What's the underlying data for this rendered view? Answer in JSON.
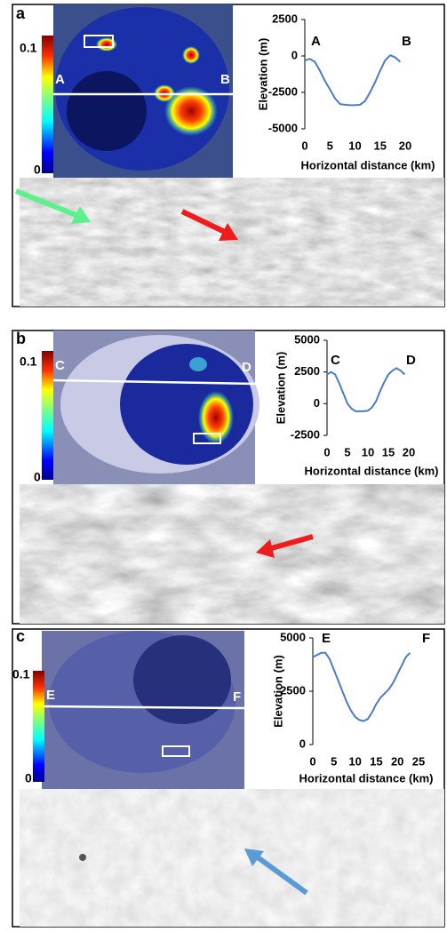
{
  "panels": [
    {
      "label": "a",
      "colorbar": {
        "max": 0.1,
        "min": 0
      },
      "map_labels": [
        "A",
        "B"
      ]
    },
    {
      "label": "b",
      "colorbar": {
        "max": 0.1,
        "min": 0
      },
      "map_labels": [
        "C",
        "D"
      ]
    },
    {
      "label": "c",
      "colorbar": {
        "max": 0.1,
        "min": 0
      },
      "map_labels": [
        "E",
        "F"
      ]
    }
  ],
  "chart_data": [
    {
      "type": "line",
      "x_label": "Horizontal distance (km)",
      "y_label": "Elevation (m)",
      "annotations": [
        "A",
        "B"
      ],
      "x": [
        0,
        1,
        2,
        3,
        4,
        5,
        6,
        7,
        8,
        9,
        10,
        11,
        12,
        13,
        14,
        15,
        16,
        17,
        18,
        19
      ],
      "values": [
        -300,
        -200,
        -400,
        -1000,
        -1700,
        -2300,
        -2900,
        -3300,
        -3350,
        -3380,
        -3380,
        -3350,
        -3100,
        -2500,
        -1800,
        -1000,
        -300,
        50,
        -100,
        -400
      ],
      "color": "#4a7cc9",
      "xlim": [
        0,
        20
      ],
      "xticks": [
        0,
        5,
        10,
        15,
        20
      ],
      "ylim": [
        -5000,
        2500
      ],
      "yticks": [
        -5000,
        -2500,
        0,
        2500
      ]
    },
    {
      "type": "line",
      "x_label": "Horizontal distance (km)",
      "y_label": "Elevation (m)",
      "annotations": [
        "C",
        "D"
      ],
      "x": [
        0,
        1,
        2,
        3,
        4,
        5,
        6,
        7,
        8,
        9,
        10,
        11,
        12,
        13,
        14,
        15,
        16,
        17,
        18,
        19
      ],
      "values": [
        2300,
        2500,
        2300,
        1600,
        800,
        0,
        -400,
        -600,
        -600,
        -600,
        -550,
        -300,
        200,
        1000,
        1700,
        2300,
        2600,
        2800,
        2600,
        2300
      ],
      "color": "#4a7cc9",
      "xlim": [
        0,
        20
      ],
      "xticks": [
        0,
        5,
        10,
        15,
        20
      ],
      "ylim": [
        -2500,
        5000
      ],
      "yticks": [
        -2500,
        0,
        2500,
        5000
      ]
    },
    {
      "type": "line",
      "x_label": "Horizontal distance (km)",
      "y_label": "Elevation (m)",
      "annotations": [
        "E",
        "F"
      ],
      "x": [
        0,
        1,
        2,
        3,
        4,
        5,
        6,
        7,
        8,
        9,
        10,
        11,
        12,
        13,
        14,
        15,
        16,
        17,
        18,
        19,
        20,
        21,
        22,
        23
      ],
      "values": [
        4100,
        4200,
        4300,
        4300,
        4000,
        3500,
        3000,
        2500,
        2000,
        1600,
        1300,
        1150,
        1100,
        1200,
        1500,
        1900,
        2200,
        2400,
        2600,
        2900,
        3300,
        3700,
        4100,
        4300
      ],
      "color": "#4a7cc9",
      "xlim": [
        0,
        25
      ],
      "xticks": [
        0,
        5,
        10,
        15,
        20,
        25
      ],
      "ylim": [
        0,
        5000
      ],
      "yticks": [
        0,
        2500,
        5000
      ]
    }
  ]
}
